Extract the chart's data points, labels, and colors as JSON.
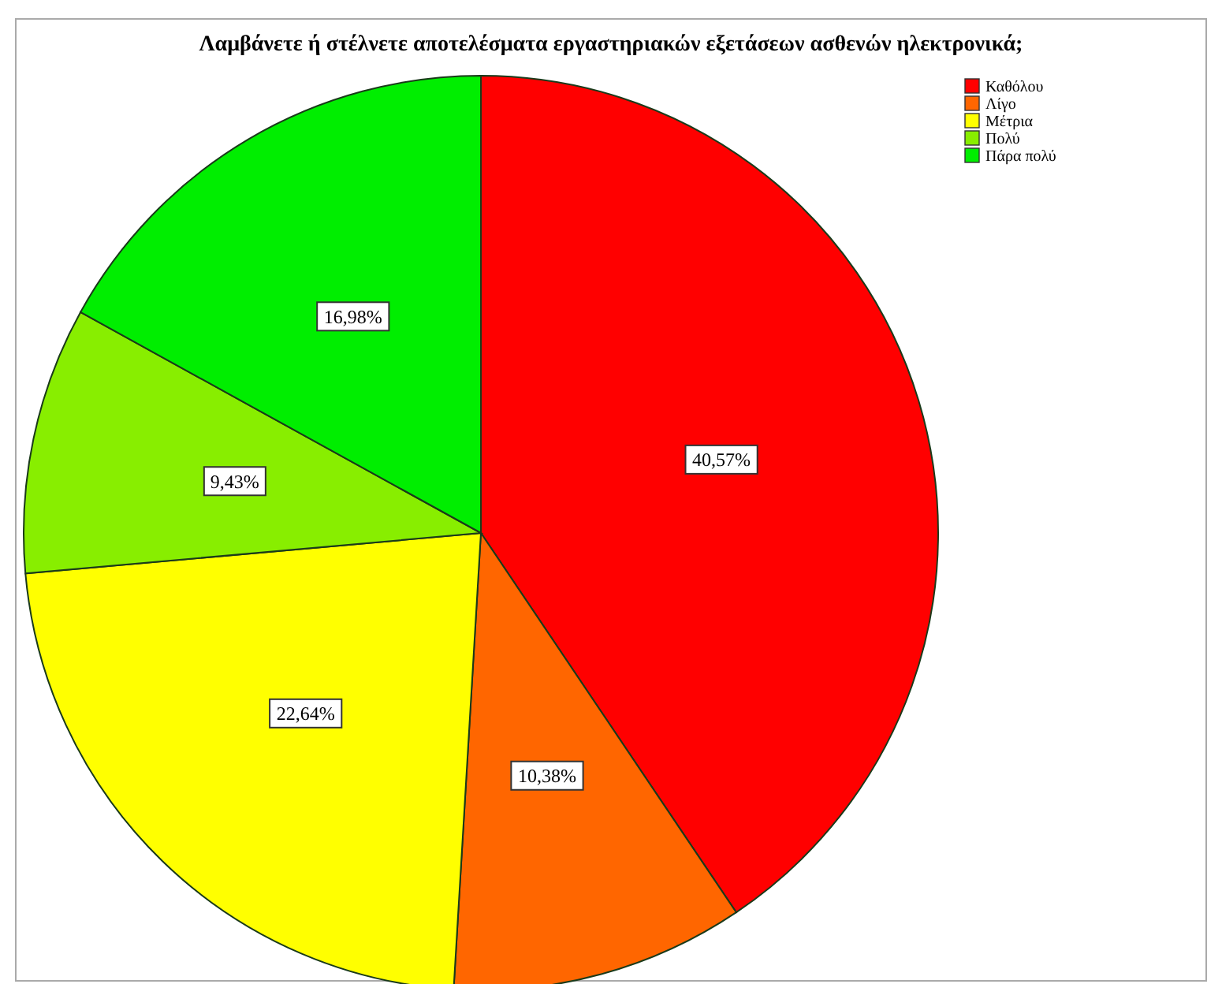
{
  "chart_data": {
    "type": "pie",
    "title": "Λαμβάνετε ή στέλνετε αποτελέσματα εργαστηριακών εξετάσεων ασθενών ηλεκτρονικά;",
    "categories": [
      "Καθόλου",
      "Λίγο",
      "Μέτρια",
      "Πολύ",
      "Πάρα πολύ"
    ],
    "values": [
      40.57,
      10.38,
      22.64,
      9.43,
      16.98
    ],
    "value_labels": [
      "40,57%",
      "10,38%",
      "22,64%",
      "9,43%",
      "16,98%"
    ],
    "colors": [
      "#ff0000",
      "#ff6600",
      "#ffff00",
      "#88ee00",
      "#00ee00"
    ],
    "legend": "top right"
  }
}
